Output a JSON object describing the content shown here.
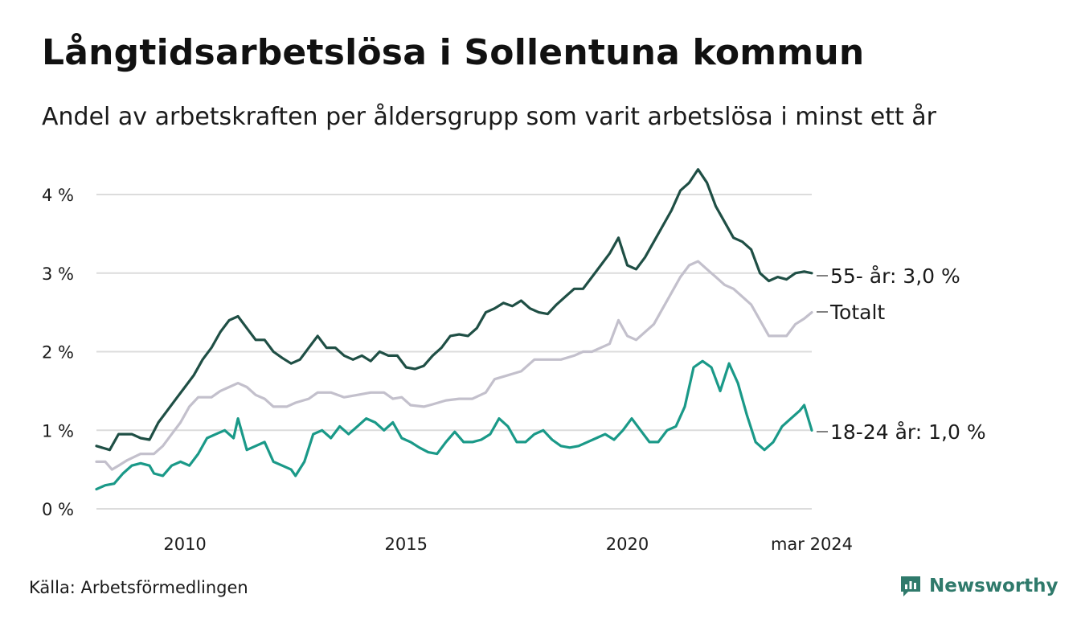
{
  "title": "Långtidsarbetslösa i Sollentuna kommun",
  "subtitle": "Andel av arbetskraften per åldersgrupp som varit arbetslösa i minst ett år",
  "source": "Källa: Arbetsförmedlingen",
  "brand": "Newsworthy",
  "colors": {
    "older": "#1f4f45",
    "total": "#c3c0cc",
    "young": "#1a9988",
    "grid": "#dcdcdc",
    "brand": "#2f7a6b"
  },
  "chart_data": {
    "type": "line",
    "x_unit": "year (decimal)",
    "xlim": [
      2008.0,
      2024.17
    ],
    "ylim": [
      0,
      4.4
    ],
    "y_ticks": [
      {
        "value": 0,
        "label": "0 %"
      },
      {
        "value": 1,
        "label": "1 %"
      },
      {
        "value": 2,
        "label": "2 %"
      },
      {
        "value": 3,
        "label": "3 %"
      },
      {
        "value": 4,
        "label": "4 %"
      }
    ],
    "x_ticks": [
      {
        "value": 2010,
        "label": "2010"
      },
      {
        "value": 2015,
        "label": "2015"
      },
      {
        "value": 2020,
        "label": "2020"
      },
      {
        "value": 2024.17,
        "label": "mar 2024"
      }
    ],
    "grid": true,
    "series": [
      {
        "name": "55- år",
        "label": "55- år: 3,0 %",
        "color_key": "older",
        "points": [
          [
            2008.0,
            0.8
          ],
          [
            2008.3,
            0.75
          ],
          [
            2008.5,
            0.95
          ],
          [
            2008.8,
            0.95
          ],
          [
            2009.0,
            0.9
          ],
          [
            2009.2,
            0.88
          ],
          [
            2009.4,
            1.1
          ],
          [
            2009.6,
            1.25
          ],
          [
            2009.8,
            1.4
          ],
          [
            2010.0,
            1.55
          ],
          [
            2010.2,
            1.7
          ],
          [
            2010.4,
            1.9
          ],
          [
            2010.6,
            2.05
          ],
          [
            2010.8,
            2.25
          ],
          [
            2011.0,
            2.4
          ],
          [
            2011.2,
            2.45
          ],
          [
            2011.4,
            2.3
          ],
          [
            2011.6,
            2.15
          ],
          [
            2011.8,
            2.15
          ],
          [
            2012.0,
            2.0
          ],
          [
            2012.2,
            1.92
          ],
          [
            2012.4,
            1.85
          ],
          [
            2012.6,
            1.9
          ],
          [
            2012.8,
            2.05
          ],
          [
            2013.0,
            2.2
          ],
          [
            2013.2,
            2.05
          ],
          [
            2013.4,
            2.05
          ],
          [
            2013.6,
            1.95
          ],
          [
            2013.8,
            1.9
          ],
          [
            2014.0,
            1.95
          ],
          [
            2014.2,
            1.88
          ],
          [
            2014.4,
            2.0
          ],
          [
            2014.6,
            1.95
          ],
          [
            2014.8,
            1.95
          ],
          [
            2015.0,
            1.8
          ],
          [
            2015.2,
            1.78
          ],
          [
            2015.4,
            1.82
          ],
          [
            2015.6,
            1.95
          ],
          [
            2015.8,
            2.05
          ],
          [
            2016.0,
            2.2
          ],
          [
            2016.2,
            2.22
          ],
          [
            2016.4,
            2.2
          ],
          [
            2016.6,
            2.3
          ],
          [
            2016.8,
            2.5
          ],
          [
            2017.0,
            2.55
          ],
          [
            2017.2,
            2.62
          ],
          [
            2017.4,
            2.58
          ],
          [
            2017.6,
            2.65
          ],
          [
            2017.8,
            2.55
          ],
          [
            2018.0,
            2.5
          ],
          [
            2018.2,
            2.48
          ],
          [
            2018.4,
            2.6
          ],
          [
            2018.6,
            2.7
          ],
          [
            2018.8,
            2.8
          ],
          [
            2019.0,
            2.8
          ],
          [
            2019.2,
            2.95
          ],
          [
            2019.4,
            3.1
          ],
          [
            2019.6,
            3.25
          ],
          [
            2019.8,
            3.45
          ],
          [
            2020.0,
            3.1
          ],
          [
            2020.2,
            3.05
          ],
          [
            2020.4,
            3.2
          ],
          [
            2020.6,
            3.4
          ],
          [
            2020.8,
            3.6
          ],
          [
            2021.0,
            3.8
          ],
          [
            2021.2,
            4.05
          ],
          [
            2021.4,
            4.15
          ],
          [
            2021.6,
            4.32
          ],
          [
            2021.8,
            4.15
          ],
          [
            2022.0,
            3.85
          ],
          [
            2022.2,
            3.65
          ],
          [
            2022.4,
            3.45
          ],
          [
            2022.6,
            3.4
          ],
          [
            2022.8,
            3.3
          ],
          [
            2023.0,
            3.0
          ],
          [
            2023.2,
            2.9
          ],
          [
            2023.4,
            2.95
          ],
          [
            2023.6,
            2.92
          ],
          [
            2023.8,
            3.0
          ],
          [
            2024.0,
            3.02
          ],
          [
            2024.17,
            3.0
          ]
        ]
      },
      {
        "name": "Totalt",
        "label": "Totalt",
        "color_key": "total",
        "points": [
          [
            2008.0,
            0.6
          ],
          [
            2008.2,
            0.6
          ],
          [
            2008.35,
            0.5
          ],
          [
            2008.5,
            0.55
          ],
          [
            2008.7,
            0.62
          ],
          [
            2009.0,
            0.7
          ],
          [
            2009.3,
            0.7
          ],
          [
            2009.5,
            0.8
          ],
          [
            2009.7,
            0.95
          ],
          [
            2009.9,
            1.1
          ],
          [
            2010.1,
            1.3
          ],
          [
            2010.3,
            1.42
          ],
          [
            2010.6,
            1.42
          ],
          [
            2010.8,
            1.5
          ],
          [
            2011.0,
            1.55
          ],
          [
            2011.2,
            1.6
          ],
          [
            2011.4,
            1.55
          ],
          [
            2011.6,
            1.45
          ],
          [
            2011.8,
            1.4
          ],
          [
            2012.0,
            1.3
          ],
          [
            2012.3,
            1.3
          ],
          [
            2012.5,
            1.35
          ],
          [
            2012.8,
            1.4
          ],
          [
            2013.0,
            1.48
          ],
          [
            2013.3,
            1.48
          ],
          [
            2013.6,
            1.42
          ],
          [
            2013.9,
            1.45
          ],
          [
            2014.2,
            1.48
          ],
          [
            2014.5,
            1.48
          ],
          [
            2014.7,
            1.4
          ],
          [
            2014.9,
            1.42
          ],
          [
            2015.1,
            1.32
          ],
          [
            2015.4,
            1.3
          ],
          [
            2015.6,
            1.33
          ],
          [
            2015.9,
            1.38
          ],
          [
            2016.2,
            1.4
          ],
          [
            2016.5,
            1.4
          ],
          [
            2016.8,
            1.48
          ],
          [
            2017.0,
            1.65
          ],
          [
            2017.3,
            1.7
          ],
          [
            2017.6,
            1.75
          ],
          [
            2017.9,
            1.9
          ],
          [
            2018.2,
            1.9
          ],
          [
            2018.5,
            1.9
          ],
          [
            2018.8,
            1.95
          ],
          [
            2019.0,
            2.0
          ],
          [
            2019.2,
            2.0
          ],
          [
            2019.4,
            2.05
          ],
          [
            2019.6,
            2.1
          ],
          [
            2019.8,
            2.4
          ],
          [
            2020.0,
            2.2
          ],
          [
            2020.2,
            2.15
          ],
          [
            2020.4,
            2.25
          ],
          [
            2020.6,
            2.35
          ],
          [
            2020.8,
            2.55
          ],
          [
            2021.0,
            2.75
          ],
          [
            2021.2,
            2.95
          ],
          [
            2021.4,
            3.1
          ],
          [
            2021.6,
            3.15
          ],
          [
            2021.8,
            3.05
          ],
          [
            2022.0,
            2.95
          ],
          [
            2022.2,
            2.85
          ],
          [
            2022.4,
            2.8
          ],
          [
            2022.6,
            2.7
          ],
          [
            2022.8,
            2.6
          ],
          [
            2023.0,
            2.4
          ],
          [
            2023.2,
            2.2
          ],
          [
            2023.4,
            2.2
          ],
          [
            2023.6,
            2.2
          ],
          [
            2023.8,
            2.35
          ],
          [
            2024.0,
            2.42
          ],
          [
            2024.17,
            2.5
          ]
        ]
      },
      {
        "name": "18-24 år",
        "label": "18-24 år: 1,0 %",
        "color_key": "young",
        "points": [
          [
            2008.0,
            0.25
          ],
          [
            2008.2,
            0.3
          ],
          [
            2008.4,
            0.32
          ],
          [
            2008.6,
            0.45
          ],
          [
            2008.8,
            0.55
          ],
          [
            2009.0,
            0.58
          ],
          [
            2009.2,
            0.55
          ],
          [
            2009.3,
            0.45
          ],
          [
            2009.5,
            0.42
          ],
          [
            2009.7,
            0.55
          ],
          [
            2009.9,
            0.6
          ],
          [
            2010.1,
            0.55
          ],
          [
            2010.3,
            0.7
          ],
          [
            2010.5,
            0.9
          ],
          [
            2010.7,
            0.95
          ],
          [
            2010.9,
            1.0
          ],
          [
            2011.1,
            0.9
          ],
          [
            2011.2,
            1.15
          ],
          [
            2011.4,
            0.75
          ],
          [
            2011.6,
            0.8
          ],
          [
            2011.8,
            0.85
          ],
          [
            2012.0,
            0.6
          ],
          [
            2012.2,
            0.55
          ],
          [
            2012.4,
            0.5
          ],
          [
            2012.5,
            0.42
          ],
          [
            2012.7,
            0.6
          ],
          [
            2012.9,
            0.95
          ],
          [
            2013.1,
            1.0
          ],
          [
            2013.3,
            0.9
          ],
          [
            2013.5,
            1.05
          ],
          [
            2013.7,
            0.95
          ],
          [
            2013.9,
            1.05
          ],
          [
            2014.1,
            1.15
          ],
          [
            2014.3,
            1.1
          ],
          [
            2014.5,
            1.0
          ],
          [
            2014.7,
            1.1
          ],
          [
            2014.9,
            0.9
          ],
          [
            2015.1,
            0.85
          ],
          [
            2015.3,
            0.78
          ],
          [
            2015.5,
            0.72
          ],
          [
            2015.7,
            0.7
          ],
          [
            2015.9,
            0.85
          ],
          [
            2016.1,
            0.98
          ],
          [
            2016.3,
            0.85
          ],
          [
            2016.5,
            0.85
          ],
          [
            2016.7,
            0.88
          ],
          [
            2016.9,
            0.95
          ],
          [
            2017.1,
            1.15
          ],
          [
            2017.3,
            1.05
          ],
          [
            2017.5,
            0.85
          ],
          [
            2017.7,
            0.85
          ],
          [
            2017.9,
            0.95
          ],
          [
            2018.1,
            1.0
          ],
          [
            2018.3,
            0.88
          ],
          [
            2018.5,
            0.8
          ],
          [
            2018.7,
            0.78
          ],
          [
            2018.9,
            0.8
          ],
          [
            2019.1,
            0.85
          ],
          [
            2019.3,
            0.9
          ],
          [
            2019.5,
            0.95
          ],
          [
            2019.7,
            0.88
          ],
          [
            2019.9,
            1.0
          ],
          [
            2020.1,
            1.15
          ],
          [
            2020.3,
            1.0
          ],
          [
            2020.5,
            0.85
          ],
          [
            2020.7,
            0.85
          ],
          [
            2020.9,
            1.0
          ],
          [
            2021.1,
            1.05
          ],
          [
            2021.3,
            1.3
          ],
          [
            2021.5,
            1.8
          ],
          [
            2021.7,
            1.88
          ],
          [
            2021.9,
            1.8
          ],
          [
            2022.1,
            1.5
          ],
          [
            2022.3,
            1.85
          ],
          [
            2022.5,
            1.6
          ],
          [
            2022.7,
            1.2
          ],
          [
            2022.9,
            0.85
          ],
          [
            2023.1,
            0.75
          ],
          [
            2023.3,
            0.85
          ],
          [
            2023.5,
            1.05
          ],
          [
            2023.7,
            1.15
          ],
          [
            2023.9,
            1.25
          ],
          [
            2024.0,
            1.32
          ],
          [
            2024.17,
            1.0
          ]
        ]
      }
    ]
  }
}
